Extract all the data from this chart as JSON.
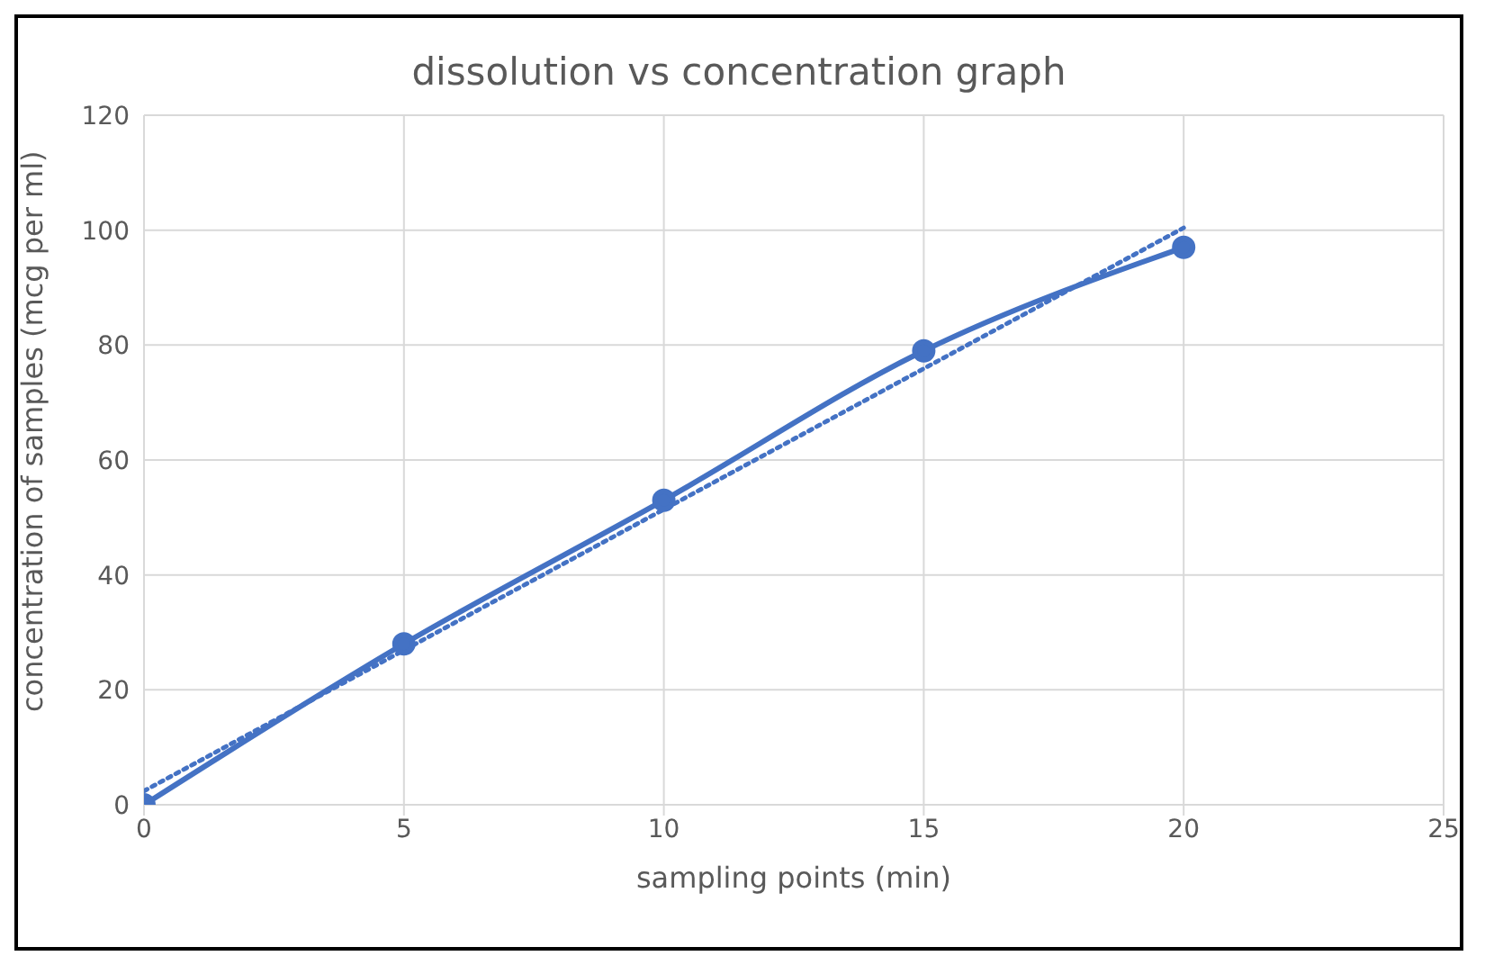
{
  "chart_data": {
    "type": "line",
    "title": "dissolution vs concentration graph",
    "xlabel": "sampling points (min)",
    "ylabel": "concentration of samples (mcg per ml)",
    "x": [
      0,
      5,
      10,
      15,
      20
    ],
    "series": [
      {
        "color": "#4472c4",
        "values": [
          0,
          28,
          53,
          79,
          97
        ],
        "marker": "circle",
        "line_style": "solid"
      },
      {
        "color": "#4472c4",
        "x": [
          0,
          20
        ],
        "values": [
          2.4,
          100.4
        ],
        "marker": "none",
        "line_style": "dotted"
      }
    ],
    "xlim": [
      0,
      25
    ],
    "xticks": [
      0,
      5,
      10,
      15,
      20,
      25
    ],
    "ylim": [
      0,
      120
    ],
    "yticks": [
      0,
      20,
      40,
      60,
      80,
      100,
      120
    ],
    "grid": true
  }
}
